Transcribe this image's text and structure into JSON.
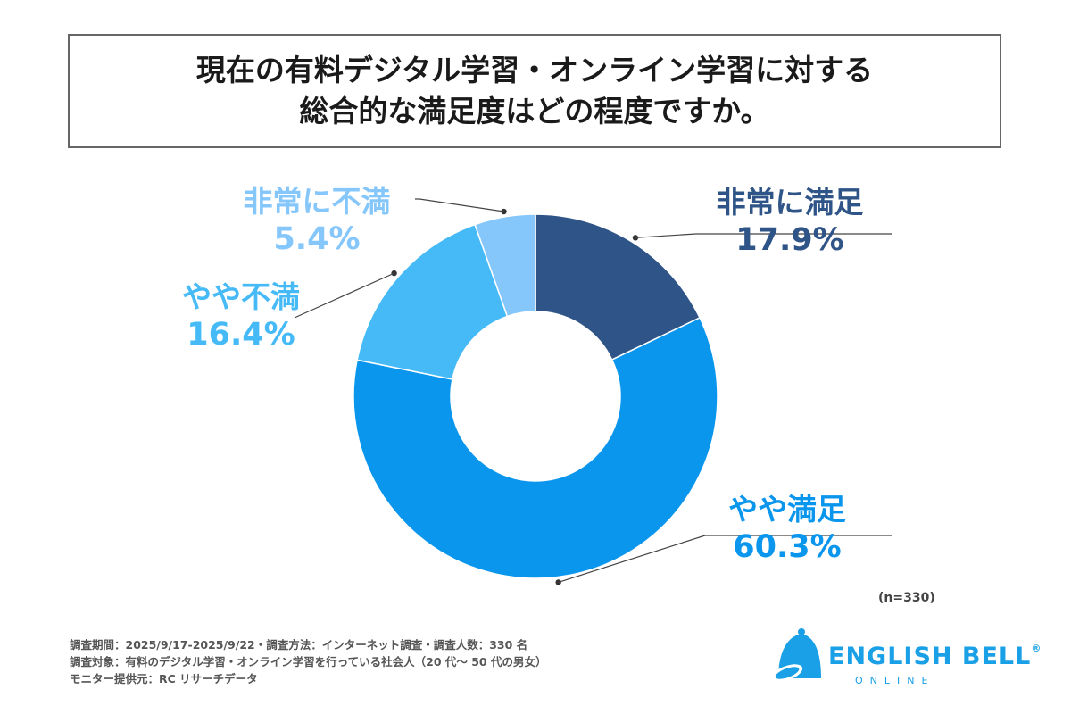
{
  "title": {
    "line1": "現在の有料デジタル学習・オンライン学習に対する",
    "line2": "総合的な満足度はどの程度ですか。"
  },
  "chart_data": {
    "type": "pie",
    "donut": true,
    "categories": [
      "非常に満足",
      "やや満足",
      "やや不満",
      "非常に不満"
    ],
    "values": [
      17.9,
      60.3,
      16.4,
      5.4
    ],
    "labels": [
      "17.9%",
      "60.3%",
      "16.4%",
      "5.4%"
    ],
    "colors": [
      "#2f5487",
      "#0b96ed",
      "#45baf6",
      "#85c6fb"
    ],
    "sample_note": "(n=330)"
  },
  "footnotes": {
    "line1": "調査期間：2025/9/17-2025/9/22・調査方法：インターネット調査・調査人数：330 名",
    "line2": "調査対象：有料のデジタル学習・オンライン学習を行っている社会人（20 代～ 50 代の男女）",
    "line3": "モニター提供元：RC リサーチデータ"
  },
  "logo": {
    "name": "ENGLISH BELL",
    "reg_mark": "®",
    "sub": "ONLINE",
    "color": "#1aa0e6"
  }
}
